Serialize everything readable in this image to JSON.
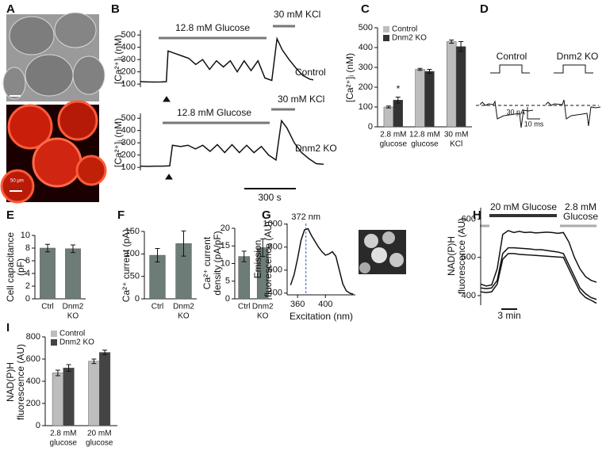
{
  "panel_labels": [
    "A",
    "B",
    "C",
    "D",
    "E",
    "F",
    "G",
    "H",
    "I"
  ],
  "panel_a": {
    "scale_label": "50 μm"
  },
  "panel_d": {
    "control_label": "Control",
    "ko_label": "Dnm2 KO",
    "current_scale": "30 pA",
    "time_scale": "10 ms"
  },
  "chart_data": [
    {
      "type": "line",
      "ylabel": "[Ca²⁺]ᵢ (nM)",
      "ylim": [
        75,
        540
      ],
      "yticks": [
        100,
        200,
        300,
        400,
        500
      ],
      "xlim": [
        0,
        1000
      ],
      "x": [
        0,
        40,
        80,
        120,
        150,
        160,
        200,
        240,
        280,
        320,
        360,
        400,
        440,
        480,
        520,
        560,
        600,
        640,
        680,
        720,
        760,
        790,
        820,
        860,
        900,
        940,
        980,
        1000
      ],
      "series": [
        {
          "color": "#111111",
          "values": [
            120,
            118,
            117,
            118,
            120,
            370,
            350,
            330,
            310,
            260,
            300,
            220,
            290,
            240,
            290,
            200,
            290,
            210,
            290,
            150,
            130,
            470,
            380,
            300,
            230,
            170,
            140,
            135
          ]
        }
      ],
      "annotations": [
        "12.8 mM Glucose",
        "30 mM KCl",
        "Control"
      ]
    },
    {
      "type": "line",
      "ylabel": "[Ca²⁺]ᵢ (nM)",
      "ylim": [
        75,
        540
      ],
      "yticks": [
        100,
        200,
        300,
        400,
        500
      ],
      "xlim": [
        0,
        1000
      ],
      "x": [
        0,
        40,
        80,
        120,
        160,
        175,
        220,
        260,
        300,
        340,
        380,
        420,
        460,
        500,
        540,
        580,
        620,
        660,
        700,
        740,
        770,
        800,
        840,
        880,
        920,
        960,
        1000
      ],
      "series": [
        {
          "color": "#111111",
          "values": [
            110,
            108,
            110,
            110,
            112,
            280,
            270,
            280,
            250,
            280,
            230,
            285,
            220,
            285,
            220,
            280,
            220,
            270,
            200,
            160,
            480,
            420,
            300,
            220,
            170,
            130,
            125
          ]
        }
      ],
      "annotations": [
        "12.8 mM Glucose",
        "30 mM KCl",
        "Dnm2 KO",
        "300 s"
      ]
    },
    {
      "type": "bar",
      "ylabel": "[Ca²⁺]ᵢ (nM)",
      "ylim": [
        0,
        500
      ],
      "yticks": [
        0,
        100,
        200,
        300,
        400,
        500
      ],
      "categories": [
        [
          "2.8 mM",
          "glucose"
        ],
        [
          "12.8 mM",
          "glucose"
        ],
        [
          "30 mM",
          "KCl"
        ]
      ],
      "series": [
        {
          "name": "Control",
          "color": "#bdbdbd",
          "values": [
            100,
            290,
            430
          ],
          "errors": [
            5,
            5,
            8
          ]
        },
        {
          "name": "Dnm2 KO",
          "color": "#333333",
          "values": [
            135,
            280,
            405
          ],
          "errors": [
            15,
            10,
            25
          ]
        }
      ],
      "annotations": [
        "*"
      ]
    },
    {
      "type": "bar",
      "ylabel": [
        "Cell capacitance",
        "(pF)"
      ],
      "ylim": [
        0,
        10
      ],
      "yticks": [
        0,
        2,
        4,
        6,
        8,
        10
      ],
      "categories": [
        [
          "Ctrl"
        ],
        [
          "Dnm2",
          "KO"
        ]
      ],
      "series": [
        {
          "color": "#6e7c78",
          "values": [
            8.0,
            7.9
          ],
          "errors": [
            0.6,
            0.6
          ]
        }
      ]
    },
    {
      "type": "bar",
      "ylabel": [
        "Ca²⁺ current (pA)"
      ],
      "ylim": [
        0,
        150
      ],
      "yticks": [
        0,
        50,
        100,
        150
      ],
      "categories": [
        [
          "Ctrl"
        ],
        [
          "Dnm2",
          "KO"
        ]
      ],
      "series": [
        {
          "color": "#6e7c78",
          "values": [
            97,
            123
          ],
          "errors": [
            15,
            28
          ]
        }
      ]
    },
    {
      "type": "bar",
      "ylabel": [
        "Ca²⁺ current",
        "density (pA/pF)"
      ],
      "ylim": [
        0,
        20
      ],
      "yticks": [
        0,
        5,
        10,
        15,
        20
      ],
      "categories": [
        [
          "Ctrl"
        ],
        [
          "Dnm2",
          "KO"
        ]
      ],
      "series": [
        {
          "color": "#6e7c78",
          "values": [
            12,
            14.5
          ],
          "errors": [
            1.5,
            2.5
          ]
        }
      ]
    },
    {
      "type": "line",
      "ylabel": [
        "Emission",
        "fluorescence (AU)"
      ],
      "xlabel": "Excitation (nm)",
      "ylim": [
        385,
        1005
      ],
      "yticks": [
        400,
        600,
        800,
        1000
      ],
      "xlim": [
        345,
        443
      ],
      "xticks": [
        360,
        400
      ],
      "marker_x": {
        "value": 372,
        "label": "372 nm"
      },
      "x": [
        350,
        355,
        360,
        365,
        370,
        375,
        380,
        385,
        390,
        395,
        400,
        405,
        410,
        415,
        420,
        425,
        430,
        435,
        440
      ],
      "series": [
        {
          "color": "#111111",
          "values": [
            470,
            560,
            700,
            860,
            950,
            960,
            900,
            850,
            800,
            760,
            730,
            740,
            760,
            720,
            600,
            480,
            420,
            400,
            390
          ]
        }
      ]
    },
    {
      "type": "line",
      "ylabel": [
        "NAD(P)H",
        "fluorescence (AU)"
      ],
      "ylim": [
        375,
        630
      ],
      "yticks": [
        400,
        500,
        600
      ],
      "xlim": [
        0,
        21
      ],
      "x": [
        0,
        1,
        2,
        3,
        4,
        5,
        6,
        7,
        8,
        9,
        10,
        11,
        12,
        13,
        14,
        15,
        16,
        17,
        18,
        19,
        20,
        21
      ],
      "series": [
        {
          "color": "#111111",
          "values": [
            430,
            425,
            428,
            470,
            560,
            570,
            565,
            568,
            565,
            566,
            564,
            565,
            566,
            565,
            563,
            565,
            540,
            500,
            470,
            450,
            440,
            435
          ]
        },
        {
          "color": "#111111",
          "values": [
            420,
            418,
            420,
            440,
            510,
            525,
            525,
            524,
            523,
            522,
            520,
            520,
            518,
            516,
            514,
            510,
            480,
            450,
            420,
            405,
            395,
            390
          ]
        },
        {
          "color": "#111111",
          "values": [
            410,
            408,
            410,
            430,
            495,
            510,
            510,
            508,
            507,
            506,
            505,
            504,
            503,
            502,
            501,
            500,
            470,
            440,
            410,
            395,
            388,
            380
          ]
        }
      ],
      "annotations": [
        "20 mM Glucose",
        "2.8 mM",
        "Glucose",
        "3 min"
      ]
    },
    {
      "type": "bar",
      "ylabel": [
        "NAD(P)H",
        "fluorescence (AU)"
      ],
      "ylim": [
        0,
        800
      ],
      "yticks": [
        0,
        200,
        400,
        600,
        800
      ],
      "categories": [
        [
          "2.8 mM",
          "glucose"
        ],
        [
          "20 mM",
          "glucose"
        ]
      ],
      "series": [
        {
          "name": "Control",
          "color": "#bdbdbd",
          "values": [
            475,
            580
          ],
          "errors": [
            25,
            20
          ]
        },
        {
          "name": "Dnm2 KO",
          "color": "#444444",
          "values": [
            520,
            660
          ],
          "errors": [
            30,
            20
          ]
        }
      ]
    }
  ]
}
